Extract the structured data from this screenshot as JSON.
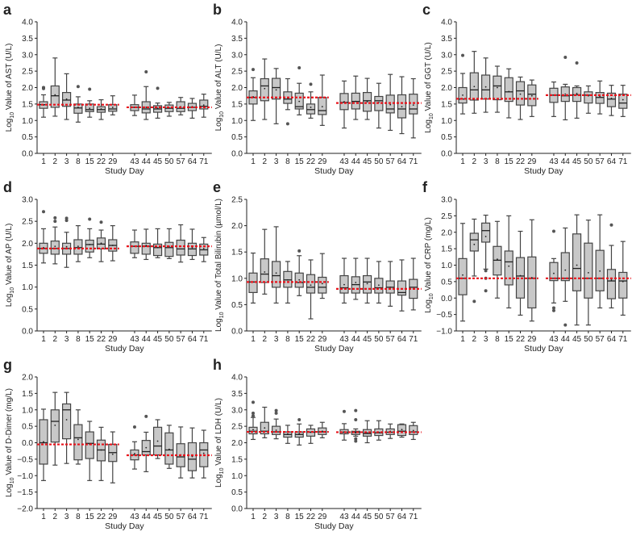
{
  "chart_data": [
    {
      "type": "box",
      "panel": "a",
      "ylabel": "Value of AST (U/L)",
      "ylim": [
        0,
        4
      ],
      "yticks": [
        0.0,
        0.5,
        1.0,
        1.5,
        2.0,
        2.5,
        3.0,
        3.5,
        4.0
      ],
      "reference_lines": [
        1.48,
        1.4
      ],
      "boxes": [
        [
          1.1,
          1.37,
          1.48,
          1.57,
          1.78,
          1.47,
          [
            2.0,
            1.97,
            2.0
          ]
        ],
        [
          1.13,
          1.4,
          1.75,
          2.05,
          2.9,
          1.78,
          []
        ],
        [
          1.03,
          1.43,
          1.62,
          1.85,
          2.42,
          1.65,
          []
        ],
        [
          0.95,
          1.22,
          1.38,
          1.5,
          1.72,
          1.4,
          [
            2.03
          ]
        ],
        [
          1.1,
          1.27,
          1.33,
          1.5,
          1.6,
          1.37,
          [
            1.95
          ]
        ],
        [
          1.03,
          1.25,
          1.33,
          1.42,
          1.63,
          1.35,
          []
        ],
        [
          1.17,
          1.28,
          1.35,
          1.48,
          1.75,
          1.4,
          []
        ],
        [
          1.15,
          1.3,
          1.4,
          1.48,
          1.77,
          1.4,
          []
        ],
        [
          1.03,
          1.23,
          1.35,
          1.57,
          2.03,
          1.4,
          [
            2.48
          ]
        ],
        [
          1.07,
          1.25,
          1.35,
          1.45,
          1.53,
          1.37,
          [
            1.98
          ]
        ],
        [
          1.13,
          1.27,
          1.37,
          1.47,
          1.55,
          1.38,
          []
        ],
        [
          1.17,
          1.27,
          1.37,
          1.57,
          1.7,
          1.42,
          []
        ],
        [
          1.07,
          1.3,
          1.4,
          1.52,
          1.67,
          1.42,
          []
        ],
        [
          1.1,
          1.35,
          1.43,
          1.62,
          1.8,
          1.47,
          []
        ]
      ]
    },
    {
      "type": "box",
      "panel": "b",
      "ylabel": "Value of ALT (U/L)",
      "ylim": [
        0,
        4
      ],
      "yticks": [
        0.0,
        0.5,
        1.0,
        1.5,
        2.0,
        2.5,
        3.0,
        3.5,
        4.0
      ],
      "reference_lines": [
        1.7,
        1.53
      ],
      "boxes": [
        [
          1.0,
          1.5,
          1.7,
          1.9,
          2.3,
          1.72,
          [
            2.55
          ]
        ],
        [
          1.03,
          1.6,
          2.05,
          2.27,
          2.87,
          1.97,
          []
        ],
        [
          0.9,
          1.65,
          2.0,
          2.28,
          2.58,
          1.93,
          []
        ],
        [
          1.33,
          1.52,
          1.65,
          1.87,
          2.27,
          1.68,
          [
            0.9
          ]
        ],
        [
          1.17,
          1.35,
          1.42,
          1.83,
          2.13,
          1.58,
          [
            2.6
          ]
        ],
        [
          1.07,
          1.2,
          1.33,
          1.5,
          1.87,
          1.4,
          [
            2.1
          ]
        ],
        [
          0.85,
          1.18,
          1.3,
          1.7,
          2.38,
          1.42,
          []
        ],
        [
          0.77,
          1.33,
          1.55,
          1.82,
          2.2,
          1.57,
          []
        ],
        [
          1.03,
          1.35,
          1.58,
          1.83,
          2.35,
          1.58,
          []
        ],
        [
          1.03,
          1.28,
          1.6,
          1.85,
          2.28,
          1.57,
          []
        ],
        [
          0.77,
          1.3,
          1.6,
          1.73,
          2.13,
          1.55,
          []
        ],
        [
          0.7,
          1.23,
          1.35,
          1.77,
          2.4,
          1.48,
          []
        ],
        [
          0.6,
          1.08,
          1.35,
          1.78,
          2.33,
          1.42,
          []
        ],
        [
          0.47,
          1.2,
          1.35,
          1.8,
          2.27,
          1.47,
          []
        ]
      ]
    },
    {
      "type": "box",
      "panel": "c",
      "ylabel": "Value of GGT (U/L)",
      "ylim": [
        0,
        4
      ],
      "yticks": [
        0.0,
        0.5,
        1.0,
        1.5,
        2.0,
        2.5,
        3.0,
        3.5,
        4.0
      ],
      "reference_lines": [
        1.66,
        1.77
      ],
      "boxes": [
        [
          1.2,
          1.53,
          1.65,
          2.0,
          2.43,
          1.77,
          [
            2.98
          ]
        ],
        [
          1.22,
          1.62,
          1.93,
          2.45,
          3.1,
          2.03,
          []
        ],
        [
          1.25,
          1.65,
          1.93,
          2.38,
          2.9,
          2.02,
          []
        ],
        [
          1.25,
          1.63,
          2.05,
          2.35,
          2.65,
          2.0,
          []
        ],
        [
          1.08,
          1.58,
          1.87,
          2.3,
          2.57,
          1.88,
          []
        ],
        [
          1.03,
          1.47,
          1.9,
          2.18,
          2.32,
          1.8,
          []
        ],
        [
          1.12,
          1.45,
          1.8,
          2.08,
          2.23,
          1.75,
          []
        ],
        [
          1.12,
          1.55,
          1.77,
          1.98,
          2.17,
          1.77,
          []
        ],
        [
          1.02,
          1.58,
          1.75,
          2.02,
          2.1,
          1.8,
          [
            2.92
          ]
        ],
        [
          1.07,
          1.58,
          1.78,
          2.0,
          2.05,
          1.82,
          [
            2.75
          ]
        ],
        [
          1.22,
          1.53,
          1.77,
          1.87,
          2.05,
          1.75,
          []
        ],
        [
          1.2,
          1.52,
          1.7,
          1.85,
          2.2,
          1.73,
          []
        ],
        [
          1.15,
          1.42,
          1.65,
          1.83,
          2.07,
          1.67,
          []
        ],
        [
          1.12,
          1.37,
          1.53,
          1.8,
          2.07,
          1.63,
          []
        ]
      ]
    },
    {
      "type": "box",
      "panel": "d",
      "ylabel": "Value of AP (U/L)",
      "ylim": [
        0,
        3
      ],
      "yticks": [
        0.0,
        0.5,
        1.0,
        1.5,
        2.0,
        2.5,
        3.0
      ],
      "reference_lines": [
        1.88,
        1.93
      ],
      "boxes": [
        [
          1.55,
          1.77,
          1.88,
          2.0,
          2.33,
          1.9,
          [
            2.72
          ]
        ],
        [
          1.53,
          1.75,
          1.88,
          2.05,
          2.37,
          1.93,
          [
            2.5,
            2.58
          ]
        ],
        [
          1.45,
          1.75,
          1.88,
          2.0,
          2.25,
          1.92,
          [
            2.52,
            2.57
          ]
        ],
        [
          1.58,
          1.75,
          1.9,
          2.08,
          2.4,
          1.93,
          []
        ],
        [
          1.67,
          1.8,
          1.97,
          2.07,
          2.33,
          1.97,
          [
            2.55
          ]
        ],
        [
          1.58,
          1.87,
          1.98,
          2.12,
          2.3,
          2.0,
          [
            2.48
          ]
        ],
        [
          1.6,
          1.82,
          1.95,
          2.08,
          2.4,
          1.95,
          []
        ],
        [
          1.67,
          1.77,
          1.93,
          2.03,
          2.3,
          1.93,
          []
        ],
        [
          1.63,
          1.75,
          1.93,
          2.0,
          2.32,
          1.95,
          []
        ],
        [
          1.67,
          1.72,
          1.9,
          1.98,
          2.33,
          1.9,
          []
        ],
        [
          1.65,
          1.7,
          1.9,
          2.02,
          2.33,
          1.93,
          []
        ],
        [
          1.57,
          1.73,
          1.87,
          2.07,
          2.42,
          1.93,
          []
        ],
        [
          1.63,
          1.72,
          1.87,
          2.0,
          2.32,
          1.9,
          []
        ],
        [
          1.58,
          1.73,
          1.85,
          1.98,
          2.13,
          1.88,
          []
        ]
      ]
    },
    {
      "type": "box",
      "panel": "e",
      "ylabel": "Value of Total Bilirubin (µmol/L)",
      "ylim": [
        0,
        2.5
      ],
      "yticks": [
        0.0,
        0.5,
        1.0,
        1.5,
        2.0,
        2.5
      ],
      "reference_lines": [
        0.93,
        0.8
      ],
      "boxes": [
        [
          0.53,
          0.73,
          0.93,
          1.1,
          1.48,
          0.93,
          []
        ],
        [
          0.7,
          0.92,
          1.08,
          1.37,
          1.93,
          1.12,
          []
        ],
        [
          0.53,
          0.83,
          1.05,
          1.32,
          1.98,
          1.1,
          []
        ],
        [
          0.53,
          0.83,
          0.97,
          1.13,
          1.32,
          0.97,
          []
        ],
        [
          0.67,
          0.83,
          0.92,
          1.1,
          1.43,
          0.97,
          [
            1.52
          ]
        ],
        [
          0.23,
          0.72,
          0.83,
          1.07,
          1.35,
          0.87,
          []
        ],
        [
          0.62,
          0.72,
          0.83,
          1.02,
          1.47,
          0.9,
          []
        ],
        [
          0.53,
          0.72,
          0.82,
          1.05,
          1.38,
          0.88,
          []
        ],
        [
          0.6,
          0.72,
          0.88,
          1.03,
          1.38,
          0.92,
          []
        ],
        [
          0.53,
          0.72,
          0.93,
          1.05,
          1.38,
          0.9,
          []
        ],
        [
          0.53,
          0.72,
          0.82,
          1.0,
          1.32,
          0.87,
          []
        ],
        [
          0.47,
          0.72,
          0.83,
          0.95,
          1.32,
          0.83,
          []
        ],
        [
          0.38,
          0.68,
          0.73,
          0.95,
          1.35,
          0.8,
          []
        ],
        [
          0.4,
          0.62,
          0.83,
          0.98,
          1.38,
          0.8,
          []
        ]
      ]
    },
    {
      "type": "box",
      "panel": "f",
      "ylabel": "Value of CRP (mg/L)",
      "ylim": [
        -1,
        3
      ],
      "yticks": [
        -1.0,
        -0.5,
        0.0,
        0.5,
        1.0,
        1.5,
        2.0,
        2.5,
        3.0
      ],
      "reference_lines": [
        0.6,
        0.6
      ],
      "boxes": [
        [
          -0.7,
          0.1,
          0.6,
          1.2,
          2.27,
          0.7,
          []
        ],
        [
          0.67,
          1.43,
          1.77,
          1.97,
          2.4,
          1.63,
          [
            -0.1
          ]
        ],
        [
          0.88,
          1.7,
          2.05,
          2.28,
          2.52,
          1.87,
          [
            0.83,
            0.6,
            0.22
          ]
        ],
        [
          0.0,
          0.7,
          1.15,
          1.57,
          2.33,
          1.18,
          []
        ],
        [
          -0.3,
          0.4,
          1.1,
          1.43,
          2.5,
          0.97,
          []
        ],
        [
          -0.52,
          0.0,
          0.67,
          1.23,
          2.03,
          0.68,
          []
        ],
        [
          -0.7,
          -0.3,
          0.6,
          1.25,
          2.38,
          0.62,
          []
        ],
        [
          -0.15,
          0.53,
          0.6,
          1.08,
          1.2,
          0.75,
          [
            2.03,
            -0.3,
            -0.38
          ]
        ],
        [
          -0.1,
          0.53,
          0.6,
          1.38,
          2.13,
          0.85,
          [
            -0.82
          ]
        ],
        [
          -0.82,
          0.22,
          0.9,
          1.95,
          2.53,
          1.0,
          []
        ],
        [
          -0.82,
          0.0,
          0.6,
          1.67,
          2.37,
          0.77,
          []
        ],
        [
          -0.3,
          0.22,
          0.6,
          1.45,
          2.53,
          0.82,
          []
        ],
        [
          -0.3,
          -0.02,
          0.52,
          0.87,
          1.6,
          0.55,
          [
            2.22
          ]
        ],
        [
          -0.52,
          0.0,
          0.52,
          0.78,
          1.72,
          0.5,
          []
        ]
      ]
    },
    {
      "type": "box",
      "panel": "g",
      "ylabel": "Value of D-Dimer (mg/L)",
      "ylim": [
        -2,
        2
      ],
      "yticks": [
        -2.0,
        -1.5,
        -1.0,
        -0.5,
        0.0,
        0.5,
        1.0,
        1.5,
        2.0
      ],
      "reference_lines": [
        -0.05,
        -0.38
      ],
      "boxes": [
        [
          -1.15,
          -0.65,
          0.0,
          0.7,
          1.02,
          0.03,
          []
        ],
        [
          -0.68,
          0.02,
          0.65,
          1.0,
          1.53,
          0.53,
          []
        ],
        [
          -0.63,
          0.12,
          1.0,
          1.18,
          1.53,
          0.7,
          []
        ],
        [
          -0.65,
          -0.52,
          0.15,
          0.55,
          1.0,
          0.1,
          []
        ],
        [
          -1.15,
          -0.48,
          -0.02,
          0.33,
          0.65,
          -0.05,
          []
        ],
        [
          -1.15,
          -0.55,
          -0.22,
          0.08,
          0.47,
          -0.22,
          []
        ],
        [
          -1.22,
          -0.57,
          -0.3,
          -0.05,
          0.33,
          -0.35,
          []
        ],
        [
          -0.8,
          -0.52,
          -0.37,
          -0.22,
          0.03,
          -0.33,
          [
            0.48
          ]
        ],
        [
          -0.88,
          -0.37,
          -0.27,
          0.07,
          0.32,
          -0.15,
          [
            0.8
          ]
        ],
        [
          -0.48,
          -0.37,
          -0.1,
          0.47,
          0.7,
          0.05,
          []
        ],
        [
          -0.78,
          -0.65,
          -0.22,
          0.3,
          0.53,
          -0.2,
          []
        ],
        [
          -1.07,
          -0.73,
          -0.43,
          -0.03,
          0.48,
          -0.37,
          []
        ],
        [
          -1.07,
          -0.85,
          -0.5,
          0.0,
          0.45,
          -0.42,
          []
        ],
        [
          -1.07,
          -0.73,
          -0.22,
          0.0,
          0.38,
          -0.32,
          []
        ]
      ]
    },
    {
      "type": "box",
      "panel": "h",
      "ylabel": "Value of LDH (U/L)",
      "ylim": [
        0,
        4
      ],
      "yticks": [
        0.0,
        0.5,
        1.0,
        1.5,
        2.0,
        2.5,
        3.0,
        3.5,
        4.0
      ],
      "reference_lines": [
        2.33,
        2.32
      ],
      "boxes": [
        [
          2.1,
          2.27,
          2.35,
          2.47,
          2.77,
          2.4,
          [
            3.23,
            2.82,
            2.9
          ]
        ],
        [
          2.15,
          2.27,
          2.35,
          2.62,
          3.08,
          2.45,
          []
        ],
        [
          2.12,
          2.25,
          2.33,
          2.5,
          2.72,
          2.38,
          [
            2.9,
            2.98
          ]
        ],
        [
          1.98,
          2.17,
          2.25,
          2.33,
          2.53,
          2.27,
          []
        ],
        [
          1.93,
          2.17,
          2.25,
          2.33,
          2.57,
          2.28,
          [
            2.7
          ]
        ],
        [
          1.98,
          2.2,
          2.32,
          2.42,
          2.53,
          2.32,
          []
        ],
        [
          2.15,
          2.25,
          2.33,
          2.45,
          2.62,
          2.35,
          []
        ],
        [
          2.08,
          2.27,
          2.32,
          2.4,
          2.58,
          2.33,
          [
            2.95
          ]
        ],
        [
          2.2,
          2.25,
          2.32,
          2.35,
          2.42,
          2.3,
          [
            2.98,
            2.7,
            2.12,
            2.05
          ]
        ],
        [
          2.0,
          2.2,
          2.28,
          2.4,
          2.67,
          2.3,
          []
        ],
        [
          2.08,
          2.22,
          2.3,
          2.42,
          2.67,
          2.32,
          []
        ],
        [
          2.13,
          2.25,
          2.32,
          2.42,
          2.57,
          2.35,
          []
        ],
        [
          2.17,
          2.22,
          2.35,
          2.55,
          2.57,
          2.4,
          []
        ],
        [
          2.1,
          2.25,
          2.33,
          2.52,
          2.62,
          2.37,
          []
        ]
      ]
    }
  ],
  "shared": {
    "categories": [
      "1",
      "2",
      "3",
      "8",
      "15",
      "22",
      "29",
      "43",
      "44",
      "45",
      "50",
      "57",
      "64",
      "71"
    ],
    "xlabel": "Study Day",
    "ylabel_prefix": "Log",
    "ylabel_subscript": "10",
    "box_stat_order": [
      "whisker_low",
      "q1",
      "median",
      "q3",
      "whisker_high",
      "mean",
      "outliers"
    ]
  },
  "colors": {
    "box_fill": "#c8c8c8",
    "box_stroke": "#444444",
    "reference_line": "#e8141c",
    "axis": "#222222"
  }
}
